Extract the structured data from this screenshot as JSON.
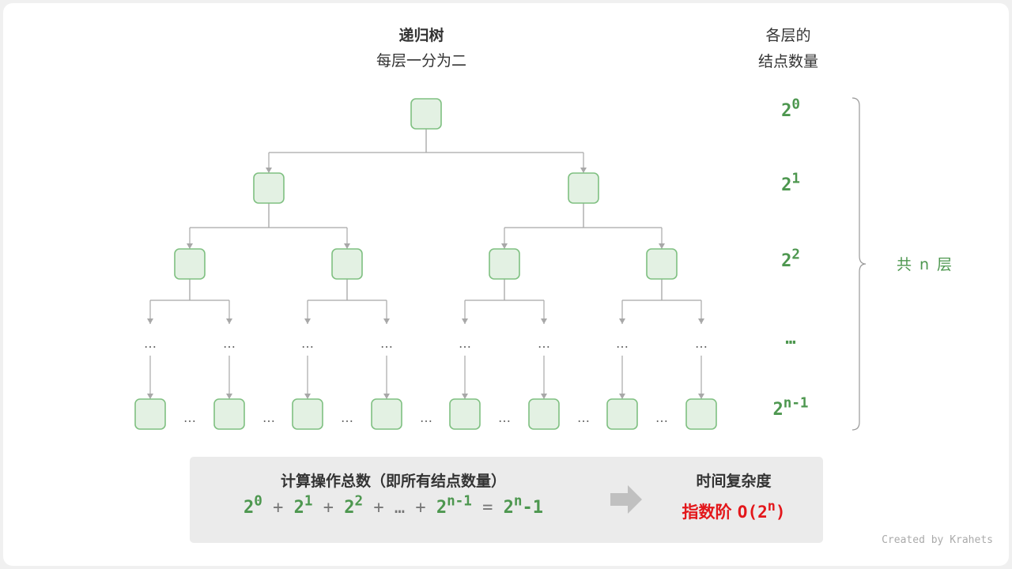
{
  "title": "递归树",
  "subtitle": "每层一分为二",
  "right_header_line1": "各层的",
  "right_header_line2": "结点数量",
  "level_counts": [
    {
      "base": "2",
      "exp": "0"
    },
    {
      "base": "2",
      "exp": "1"
    },
    {
      "base": "2",
      "exp": "2"
    },
    {
      "base": "…",
      "exp": ""
    },
    {
      "base": "2",
      "exp": "n-1"
    }
  ],
  "brace_label": "共 n 层",
  "ellipsis": "…",
  "summary": {
    "heading": "计算操作总数（即所有结点数量）",
    "formula": {
      "t0": "2",
      "e0": "0",
      "plus": "+",
      "t1": "2",
      "e1": "1",
      "t2": "2",
      "e2": "2",
      "dots": "…",
      "tn": "2",
      "en": "n-1",
      "eq": "=",
      "rb": "2",
      "re": "n",
      "rm": "-1"
    },
    "result_heading": "时间复杂度",
    "result_label": "指数阶",
    "result_big_o": "O(2",
    "result_exp": "n",
    "result_close": ")"
  },
  "credit": "Created by Krahets",
  "colors": {
    "node_fill": "#e3f1e3",
    "node_stroke": "#7fc081",
    "green_text": "#4d974f",
    "red_text": "#e3171b",
    "line": "#a8a8a8"
  }
}
